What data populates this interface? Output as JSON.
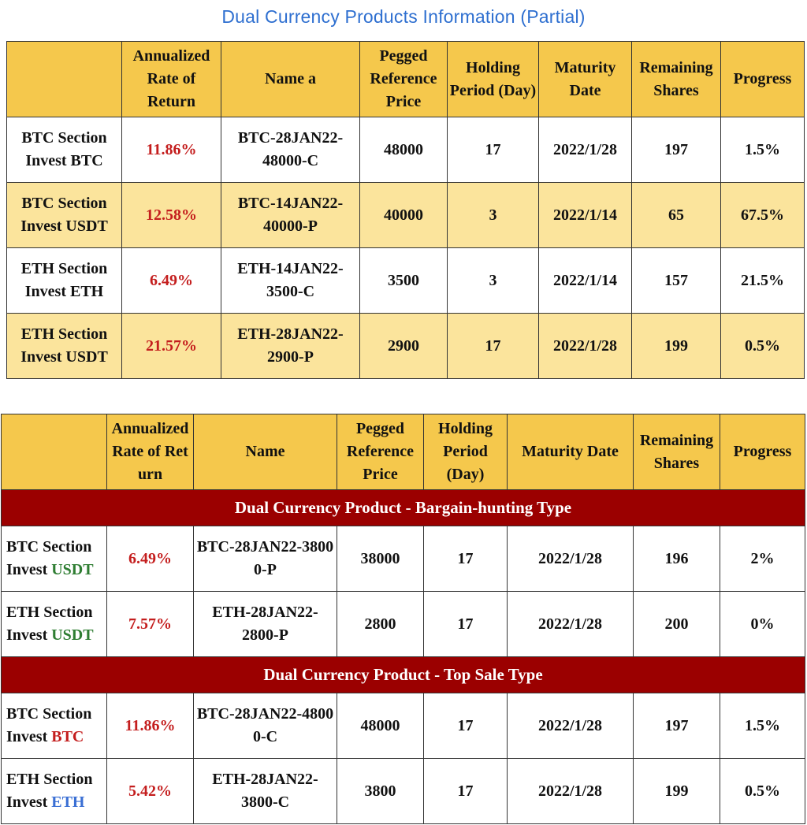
{
  "title": "Dual Currency Products Information (Partial)",
  "table1": {
    "headers": [
      "",
      "Annualized Rate of Return",
      "Name a",
      "Pegged Reference Price",
      "Holding Period (Day)",
      "Maturity Date",
      "Remaining Shares",
      "Progress"
    ],
    "rows": [
      {
        "section": "BTC Section",
        "invest": "Invest BTC",
        "rate": "11.86%",
        "name": "BTC-28JAN22-48000-C",
        "price": "48000",
        "period": "17",
        "maturity": "2022/1/28",
        "shares": "197",
        "progress": "1.5%"
      },
      {
        "section": "BTC Section",
        "invest": "Invest USDT",
        "rate": "12.58%",
        "name": "BTC-14JAN22-40000-P",
        "price": "40000",
        "period": "3",
        "maturity": "2022/1/14",
        "shares": "65",
        "progress": "67.5%"
      },
      {
        "section": "ETH Section",
        "invest": "Invest ETH",
        "rate": "6.49%",
        "name": "ETH-14JAN22-3500-C",
        "price": "3500",
        "period": "3",
        "maturity": "2022/1/14",
        "shares": "157",
        "progress": "21.5%"
      },
      {
        "section": "ETH Section",
        "invest": "Invest USDT",
        "rate": "21.57%",
        "name": "ETH-28JAN22-2900-P",
        "price": "2900",
        "period": "17",
        "maturity": "2022/1/28",
        "shares": "199",
        "progress": "0.5%"
      }
    ]
  },
  "table2": {
    "headers": [
      "",
      "Annualized Rate of Return",
      "Name",
      "Pegged Reference Price",
      "Holding Period (Day)",
      "Maturity Date",
      "Remaining Shares",
      "Progress"
    ],
    "band1": "Dual Currency Product - Bargain-hunting Type",
    "band2": "Dual Currency Product - Top Sale Type",
    "rows": [
      {
        "section": "BTC Section",
        "invest_prefix": "Invest ",
        "invest_coin": "USDT",
        "rate": "6.49%",
        "name": "BTC-28JAN22-38000-P",
        "price": "38000",
        "period": "17",
        "maturity": "2022/1/28",
        "shares": "196",
        "progress": "2%"
      },
      {
        "section": "ETH Section",
        "invest_prefix": "Invest ",
        "invest_coin": "USDT",
        "rate": "7.57%",
        "name": "ETH-28JAN22-2800-P",
        "price": "2800",
        "period": "17",
        "maturity": "2022/1/28",
        "shares": "200",
        "progress": "0%"
      },
      {
        "section": "BTC Section",
        "invest_prefix": "Invest ",
        "invest_coin": "BTC",
        "rate": "11.86%",
        "name": "BTC-28JAN22-48000-C",
        "price": "48000",
        "period": "17",
        "maturity": "2022/1/28",
        "shares": "197",
        "progress": "1.5%"
      },
      {
        "section": "ETH Section",
        "invest_prefix": "Invest ",
        "invest_coin": "ETH",
        "rate": "5.42%",
        "name": "ETH-28JAN22-3800-C",
        "price": "3800",
        "period": "17",
        "maturity": "2022/1/28",
        "shares": "199",
        "progress": "0.5%"
      }
    ]
  },
  "colors": {
    "title": "#2e6fd0",
    "header_bg": "#f5c84c",
    "row_alt_bg": "#fbe49c",
    "band_bg": "#9b0000",
    "rate": "#c41e1e",
    "usdt": "#2e7d32",
    "btc": "#c41e1e",
    "eth": "#3a6fd4"
  }
}
